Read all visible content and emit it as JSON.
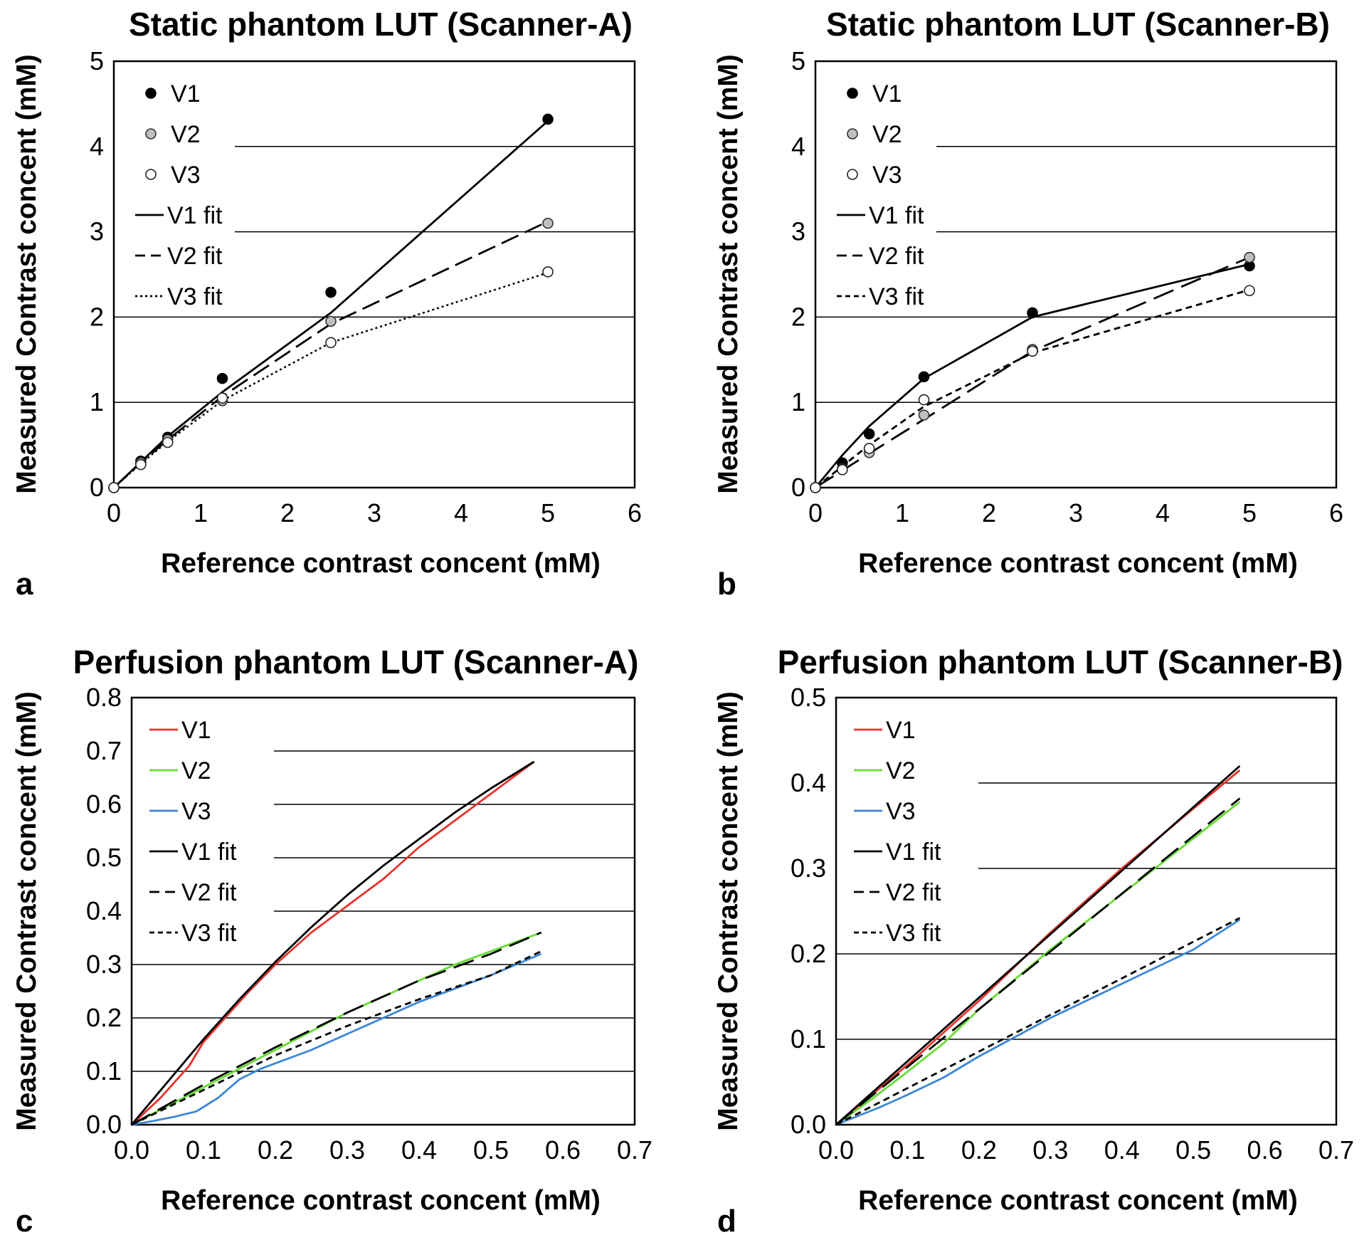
{
  "figure": {
    "panel_letters": [
      "a",
      "b",
      "c",
      "d"
    ]
  },
  "chart_data": [
    {
      "panel": "a",
      "type": "scatter",
      "title": "Static phantom LUT (Scanner-A)",
      "xlabel": "Reference contrast concent (mM)",
      "ylabel": "Measured Contrast concent (mM)",
      "xlim": [
        0,
        6
      ],
      "ylim": [
        0,
        5
      ],
      "xticks": [
        0,
        1,
        2,
        3,
        4,
        5,
        6
      ],
      "yticks": [
        0,
        1,
        2,
        3,
        4,
        5
      ],
      "tick_decimals": 0,
      "grid": "horizontal",
      "legend_position": "top-left",
      "points": [
        {
          "name": "V1",
          "marker": "filled-black",
          "x": [
            0,
            0.31,
            0.62,
            1.25,
            2.5,
            5.0
          ],
          "y": [
            0,
            0.31,
            0.59,
            1.28,
            2.29,
            4.32
          ]
        },
        {
          "name": "V2",
          "marker": "filled-gray",
          "x": [
            0,
            0.31,
            0.62,
            1.25,
            2.5,
            5.0
          ],
          "y": [
            0,
            0.29,
            0.56,
            1.02,
            1.95,
            3.1
          ]
        },
        {
          "name": "V3",
          "marker": "hollow",
          "x": [
            0,
            0.31,
            0.62,
            1.25,
            2.5,
            5.0
          ],
          "y": [
            0,
            0.27,
            0.53,
            1.05,
            1.7,
            2.53
          ]
        }
      ],
      "fits": [
        {
          "name": "V1 fit",
          "style": "solid",
          "color": "#000000",
          "x": [
            0,
            0.31,
            0.62,
            1.25,
            2.5,
            5.0
          ],
          "y": [
            0,
            0.3,
            0.6,
            1.12,
            2.05,
            4.3
          ]
        },
        {
          "name": "V2 fit",
          "style": "dashed",
          "color": "#000000",
          "x": [
            0,
            0.31,
            0.62,
            1.25,
            2.5,
            5.0
          ],
          "y": [
            0,
            0.29,
            0.56,
            1.07,
            1.92,
            3.12
          ]
        },
        {
          "name": "V3 fit",
          "style": "dotted",
          "color": "#000000",
          "x": [
            0,
            0.31,
            0.62,
            1.25,
            2.5,
            5.0
          ],
          "y": [
            0,
            0.28,
            0.54,
            1.02,
            1.7,
            2.52
          ]
        }
      ]
    },
    {
      "panel": "b",
      "type": "scatter",
      "title": "Static phantom LUT (Scanner-B)",
      "xlabel": "Reference contrast concent (mM)",
      "ylabel": "Measured Contrast concent (mM)",
      "xlim": [
        0,
        6
      ],
      "ylim": [
        0,
        5
      ],
      "xticks": [
        0,
        1,
        2,
        3,
        4,
        5,
        6
      ],
      "yticks": [
        0,
        1,
        2,
        3,
        4,
        5
      ],
      "tick_decimals": 0,
      "grid": "horizontal",
      "legend_position": "top-left",
      "points": [
        {
          "name": "V1",
          "marker": "filled-black",
          "x": [
            0,
            0.31,
            0.62,
            1.25,
            2.5,
            5.0
          ],
          "y": [
            0,
            0.29,
            0.63,
            1.3,
            2.05,
            2.6
          ]
        },
        {
          "name": "V2",
          "marker": "filled-gray",
          "x": [
            0,
            0.31,
            0.62,
            1.25,
            2.5,
            5.0
          ],
          "y": [
            0,
            0.22,
            0.41,
            0.85,
            1.62,
            2.7
          ]
        },
        {
          "name": "V3",
          "marker": "hollow",
          "x": [
            0,
            0.31,
            0.62,
            1.25,
            2.5,
            5.0
          ],
          "y": [
            0,
            0.21,
            0.46,
            1.03,
            1.6,
            2.31
          ]
        }
      ],
      "fits": [
        {
          "name": "V1 fit",
          "style": "solid",
          "color": "#000000",
          "x": [
            0,
            0.31,
            0.62,
            1.25,
            2.5,
            5.0
          ],
          "y": [
            0,
            0.38,
            0.72,
            1.28,
            2.0,
            2.62
          ]
        },
        {
          "name": "V2 fit",
          "style": "longdash",
          "color": "#000000",
          "x": [
            0,
            0.31,
            0.62,
            1.25,
            2.5,
            5.0
          ],
          "y": [
            0,
            0.2,
            0.4,
            0.8,
            1.6,
            2.7
          ]
        },
        {
          "name": "V3 fit",
          "style": "shortdash",
          "color": "#000000",
          "x": [
            0,
            0.31,
            0.62,
            1.25,
            2.5,
            5.0
          ],
          "y": [
            0,
            0.25,
            0.5,
            0.95,
            1.58,
            2.32
          ]
        }
      ]
    },
    {
      "panel": "c",
      "type": "line",
      "title": "Perfusion phantom LUT (Scanner-A)",
      "xlabel": "Reference contrast concent (mM)",
      "ylabel": "Measured Contrast concent (mM)",
      "xlim": [
        0,
        0.7
      ],
      "ylim": [
        0,
        0.8
      ],
      "xticks": [
        0.0,
        0.1,
        0.2,
        0.3,
        0.4,
        0.5,
        0.6,
        0.7
      ],
      "yticks": [
        0.0,
        0.1,
        0.2,
        0.3,
        0.4,
        0.5,
        0.6,
        0.7,
        0.8
      ],
      "tick_decimals": 1,
      "grid": "horizontal",
      "legend_position": "top-left",
      "series": [
        {
          "name": "V1",
          "style": "solid",
          "color": "#e8322a",
          "x": [
            0,
            0.02,
            0.04,
            0.06,
            0.08,
            0.1,
            0.13,
            0.16,
            0.2,
            0.25,
            0.3,
            0.35,
            0.4,
            0.45,
            0.5,
            0.56
          ],
          "y": [
            0,
            0.025,
            0.05,
            0.08,
            0.11,
            0.155,
            0.2,
            0.245,
            0.3,
            0.36,
            0.41,
            0.46,
            0.52,
            0.57,
            0.62,
            0.68
          ]
        },
        {
          "name": "V2",
          "style": "solid",
          "color": "#66dd33",
          "x": [
            0,
            0.05,
            0.1,
            0.15,
            0.2,
            0.25,
            0.3,
            0.35,
            0.4,
            0.45,
            0.5,
            0.57
          ],
          "y": [
            0,
            0.035,
            0.07,
            0.105,
            0.14,
            0.175,
            0.21,
            0.24,
            0.27,
            0.3,
            0.325,
            0.36
          ]
        },
        {
          "name": "V3",
          "style": "solid",
          "color": "#3a86d8",
          "x": [
            0,
            0.03,
            0.06,
            0.09,
            0.12,
            0.15,
            0.18,
            0.25,
            0.3,
            0.35,
            0.4,
            0.45,
            0.5,
            0.57
          ],
          "y": [
            0,
            0.007,
            0.015,
            0.025,
            0.05,
            0.085,
            0.105,
            0.14,
            0.17,
            0.2,
            0.23,
            0.255,
            0.28,
            0.32
          ]
        },
        {
          "name": "V1 fit",
          "style": "solid",
          "color": "#000000",
          "x": [
            0,
            0.05,
            0.1,
            0.15,
            0.2,
            0.25,
            0.3,
            0.35,
            0.4,
            0.45,
            0.5,
            0.56
          ],
          "y": [
            0,
            0.08,
            0.16,
            0.235,
            0.305,
            0.37,
            0.43,
            0.485,
            0.535,
            0.585,
            0.63,
            0.68
          ]
        },
        {
          "name": "V2 fit",
          "style": "longdash",
          "color": "#000000",
          "x": [
            0,
            0.1,
            0.2,
            0.3,
            0.4,
            0.5,
            0.57
          ],
          "y": [
            0,
            0.075,
            0.145,
            0.21,
            0.27,
            0.32,
            0.36
          ]
        },
        {
          "name": "V3 fit",
          "style": "shortdash",
          "color": "#000000",
          "x": [
            0,
            0.1,
            0.2,
            0.3,
            0.4,
            0.5,
            0.57
          ],
          "y": [
            0,
            0.065,
            0.13,
            0.185,
            0.235,
            0.28,
            0.325
          ]
        }
      ]
    },
    {
      "panel": "d",
      "type": "line",
      "title": "Perfusion phantom LUT (Scanner-B)",
      "xlabel": "Reference contrast concent (mM)",
      "ylabel": "Measured Contrast concent (mM)",
      "xlim": [
        0,
        0.7
      ],
      "ylim": [
        0,
        0.5
      ],
      "xticks": [
        0.0,
        0.1,
        0.2,
        0.3,
        0.4,
        0.5,
        0.6,
        0.7
      ],
      "yticks": [
        0.0,
        0.1,
        0.2,
        0.3,
        0.4,
        0.5
      ],
      "tick_decimals": 1,
      "grid": "horizontal",
      "legend_position": "top-left",
      "series": [
        {
          "name": "V1",
          "style": "solid",
          "color": "#e8322a",
          "x": [
            0,
            0.05,
            0.1,
            0.2,
            0.3,
            0.4,
            0.5,
            0.565
          ],
          "y": [
            0,
            0.035,
            0.07,
            0.145,
            0.225,
            0.3,
            0.37,
            0.415
          ]
        },
        {
          "name": "V2",
          "style": "solid",
          "color": "#66dd33",
          "x": [
            0,
            0.05,
            0.1,
            0.15,
            0.2,
            0.3,
            0.4,
            0.5,
            0.565
          ],
          "y": [
            0,
            0.03,
            0.062,
            0.095,
            0.135,
            0.205,
            0.27,
            0.335,
            0.378
          ]
        },
        {
          "name": "V3",
          "style": "solid",
          "color": "#3a86d8",
          "x": [
            0,
            0.03,
            0.06,
            0.1,
            0.15,
            0.2,
            0.3,
            0.4,
            0.5,
            0.565
          ],
          "y": [
            0,
            0.01,
            0.02,
            0.035,
            0.055,
            0.08,
            0.125,
            0.165,
            0.205,
            0.24
          ]
        },
        {
          "name": "V1 fit",
          "style": "solid",
          "color": "#000000",
          "x": [
            0,
            0.565
          ],
          "y": [
            0,
            0.42
          ]
        },
        {
          "name": "V2 fit",
          "style": "longdash",
          "color": "#000000",
          "x": [
            0,
            0.565
          ],
          "y": [
            0,
            0.382
          ]
        },
        {
          "name": "V3 fit",
          "style": "shortdash",
          "color": "#000000",
          "x": [
            0,
            0.565
          ],
          "y": [
            0,
            0.242
          ]
        }
      ]
    }
  ]
}
